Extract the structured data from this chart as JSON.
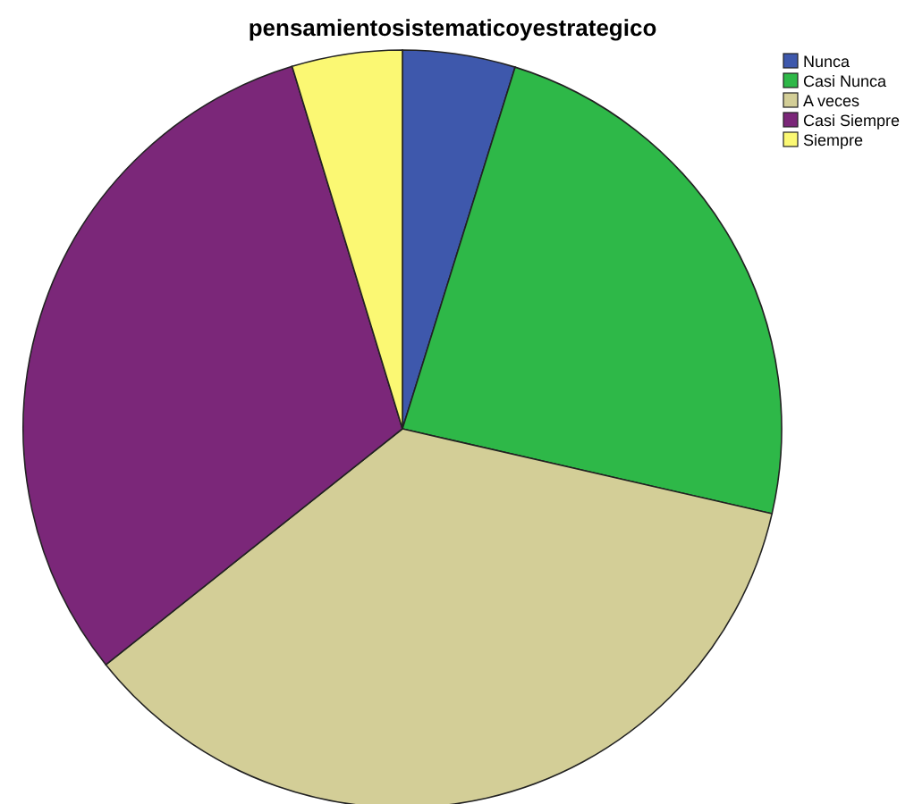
{
  "chart_data": {
    "type": "pie",
    "title": "pensamientosistematicoyestrategico",
    "categories": [
      "Nunca",
      "Casi Nunca",
      "A veces",
      "Casi Siempre",
      "Siempre"
    ],
    "values": [
      4.8,
      23.8,
      35.7,
      31.0,
      4.7
    ],
    "colors": [
      "#3e58ac",
      "#2eb848",
      "#d3ce97",
      "#7b2779",
      "#fbf873"
    ],
    "legend": "top right"
  }
}
